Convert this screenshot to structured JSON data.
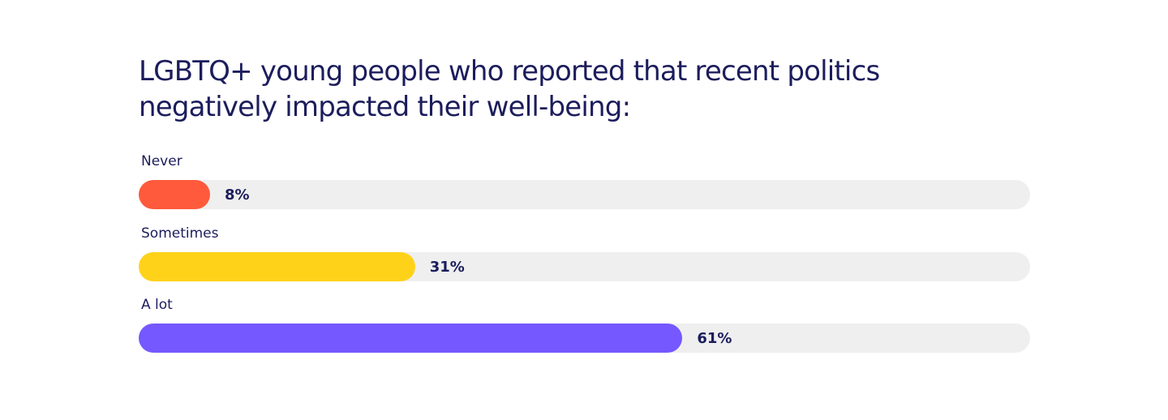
{
  "chart_data": {
    "type": "bar",
    "orientation": "horizontal",
    "title": "LGBTQ+ young people who reported that recent politics negatively impacted their well-being:",
    "categories": [
      "Never",
      "Sometimes",
      "A lot"
    ],
    "values": [
      8,
      31,
      61
    ],
    "value_labels": [
      "8%",
      "31%",
      "61%"
    ],
    "unit": "%",
    "xlim": [
      0,
      100
    ],
    "colors": [
      "#ff5a3c",
      "#ffd21a",
      "#7558ff"
    ],
    "track_color": "#efefef",
    "grid": false,
    "legend": "none"
  }
}
